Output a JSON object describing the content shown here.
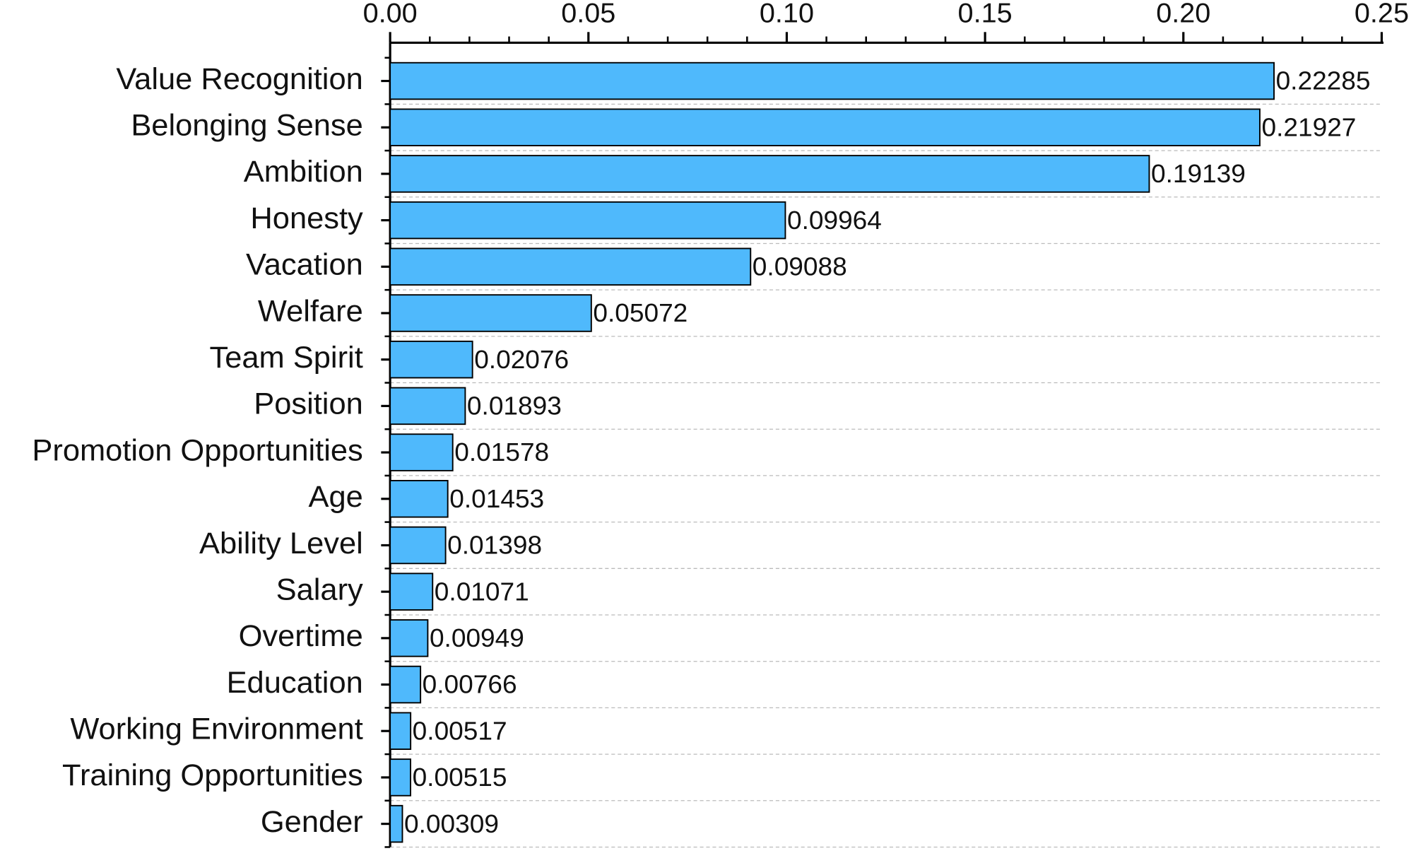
{
  "chart_data": {
    "type": "barh",
    "categories": [
      "Value Recognition",
      "Belonging Sense",
      "Ambition",
      "Honesty",
      "Vacation",
      "Welfare",
      "Team Spirit",
      "Position",
      "Promotion Opportunities",
      "Age",
      "Ability Level",
      "Salary",
      "Overtime",
      "Education",
      "Working Environment",
      "Training Opportunities",
      "Gender"
    ],
    "values": [
      0.22285,
      0.21927,
      0.19139,
      0.09964,
      0.09088,
      0.05072,
      0.02076,
      0.01893,
      0.01578,
      0.01453,
      0.01398,
      0.01071,
      0.00949,
      0.00766,
      0.00517,
      0.00515,
      0.00309
    ],
    "color": "#4fb9fc",
    "xlim": [
      0,
      0.25
    ],
    "xticks": [
      {
        "value": 0,
        "label": "0.00"
      },
      0.05,
      {
        "value": 0.1,
        "label": "0.10"
      },
      0.15,
      {
        "value": 0.2,
        "label": "0.20"
      },
      0.25
    ],
    "grid": true
  }
}
